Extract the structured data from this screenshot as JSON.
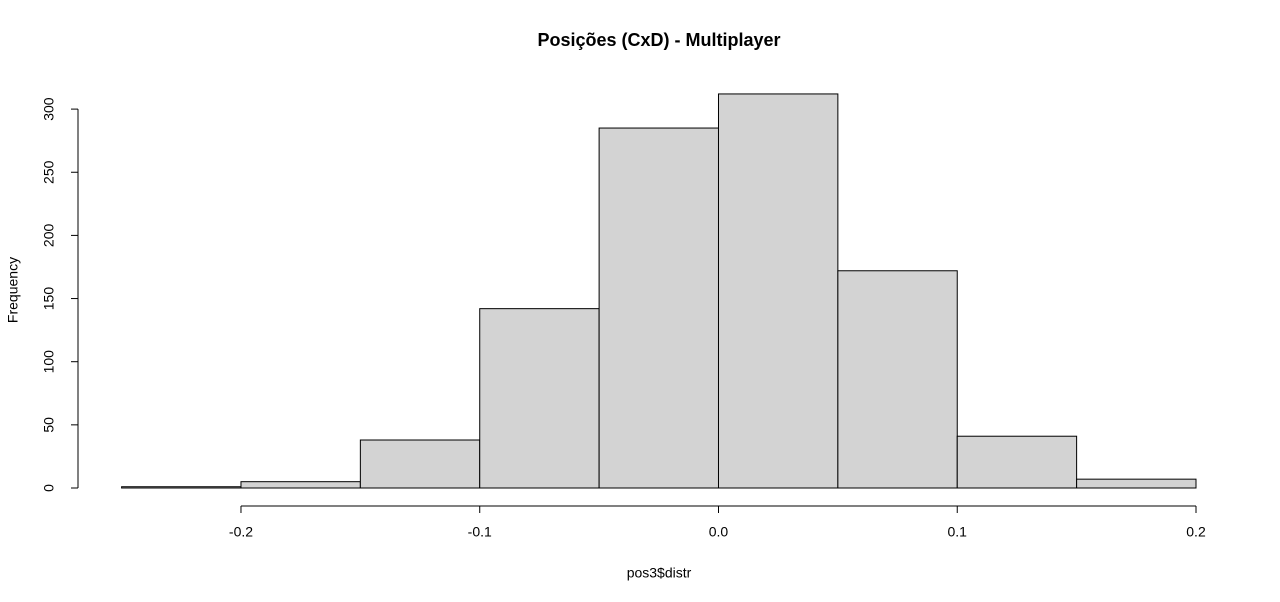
{
  "chart_data": {
    "type": "histogram",
    "title": "Posições (CxD) - Multiplayer",
    "x_label": "pos3$distr",
    "y_label": "Frequency",
    "bins": [
      -0.25,
      -0.2,
      -0.15,
      -0.1,
      -0.05,
      0,
      0.05,
      0.1,
      0.15,
      0.2
    ],
    "values": [
      1,
      5,
      38,
      142,
      285,
      312,
      172,
      41,
      7
    ],
    "color": "#d3d3d3",
    "xlim": [
      -0.25,
      0.2
    ],
    "xticks": [
      -0.2,
      -0.1,
      {
        "value": 0,
        "label": "0.0"
      },
      0.1,
      0.2
    ],
    "ylim": [
      0,
      312
    ],
    "yticks": [
      0,
      50,
      100,
      150,
      200,
      250,
      300
    ],
    "grid": false
  }
}
